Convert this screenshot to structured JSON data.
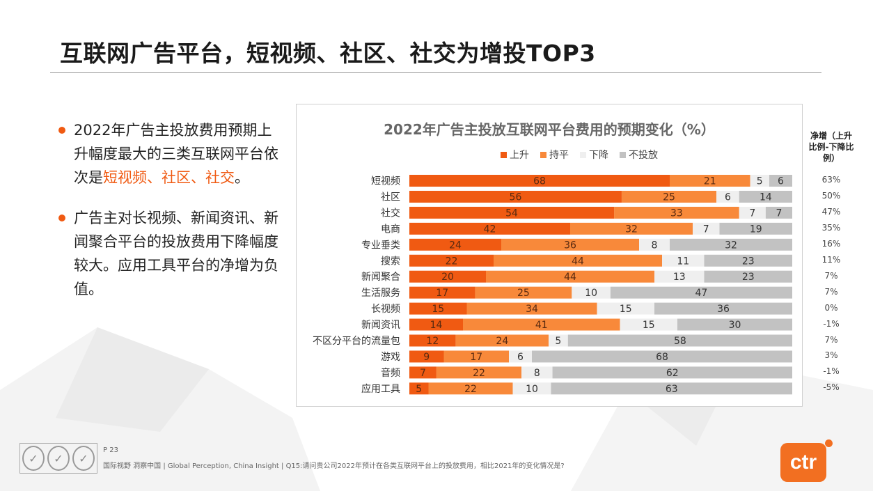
{
  "page": {
    "title": "互联网广告平台，短视频、社区、社交为增投TOP3",
    "bullets": [
      {
        "before": "2022年广告主投放费用预期上升幅度最大的三类互联网平台依次是",
        "highlight": "短视频、社区、社交",
        "after": "。"
      },
      {
        "before": "广告主对长视频、新闻资讯、新闻聚合平台的投放费用下降幅度较大。应用工具平台的净增为负值。",
        "highlight": "",
        "after": ""
      }
    ],
    "net_header": "净增（上升比例-下降比例）",
    "page_number": "P 23",
    "source": "国际视野 洞察中国 | Global Perception, China Insight | Q15:请问贵公司2022年预计在各类互联网平台上的投放费用，相比2021年的变化情况是?",
    "logo_text": "ctr",
    "seal_glyph": "✓",
    "accent_color": "#f05a12"
  },
  "chart_data": {
    "type": "bar",
    "orientation": "horizontal",
    "stacked": true,
    "title": "2022年广告主投放互联网平台费用的预期变化（%）",
    "categories": [
      "短视频",
      "社区",
      "社交",
      "电商",
      "专业垂类",
      "搜索",
      "新闻聚合",
      "生活服务",
      "长视频",
      "新闻资讯",
      "不区分平台的流量包",
      "游戏",
      "音频",
      "应用工具"
    ],
    "series": [
      {
        "name": "上升",
        "color": "#f05a12",
        "label_color": "#5a2a10",
        "values": [
          68,
          56,
          54,
          42,
          24,
          22,
          20,
          17,
          15,
          14,
          12,
          9,
          7,
          5
        ]
      },
      {
        "name": "持平",
        "color": "#f8893a",
        "label_color": "#5a2a10",
        "values": [
          21,
          25,
          33,
          32,
          36,
          44,
          44,
          25,
          34,
          41,
          24,
          17,
          22,
          22
        ]
      },
      {
        "name": "下降",
        "color": "#efefef",
        "label_color": "#333333",
        "values": [
          5,
          6,
          7,
          7,
          8,
          11,
          13,
          10,
          15,
          15,
          5,
          6,
          8,
          10
        ]
      },
      {
        "name": "不投放",
        "color": "#c2c2c2",
        "label_color": "#333333",
        "values": [
          6,
          14,
          7,
          19,
          32,
          23,
          23,
          47,
          36,
          30,
          58,
          68,
          62,
          63
        ]
      }
    ],
    "net_increase": [
      "63%",
      "50%",
      "47%",
      "35%",
      "16%",
      "11%",
      "7%",
      "7%",
      "0%",
      "-1%",
      "7%",
      "3%",
      "-1%",
      "-5%"
    ],
    "legend_position": "top-center",
    "grid": false
  }
}
